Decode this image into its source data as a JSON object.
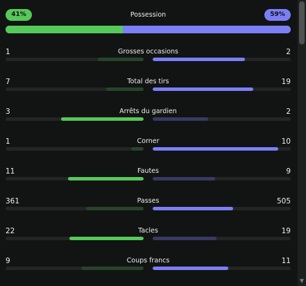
{
  "possession": {
    "title": "Possession",
    "home_label": "41%",
    "away_label": "59%",
    "home_pct": 41,
    "away_pct": 59,
    "home_color": "#55c95a",
    "away_color": "#7b7ff7"
  },
  "stats": [
    {
      "label": "Grosses occasions",
      "home": "1",
      "away": "2",
      "home_val": 1,
      "away_val": 2
    },
    {
      "label": "Total des tirs",
      "home": "7",
      "away": "19",
      "home_val": 7,
      "away_val": 19
    },
    {
      "label": "Arrêts du gardien",
      "home": "3",
      "away": "2",
      "home_val": 3,
      "away_val": 2
    },
    {
      "label": "Corner",
      "home": "1",
      "away": "10",
      "home_val": 1,
      "away_val": 10
    },
    {
      "label": "Fautes",
      "home": "11",
      "away": "9",
      "home_val": 11,
      "away_val": 9
    },
    {
      "label": "Passes",
      "home": "361",
      "away": "505",
      "home_val": 361,
      "away_val": 505
    },
    {
      "label": "Tacles",
      "home": "22",
      "away": "19",
      "home_val": 22,
      "away_val": 19
    },
    {
      "label": "Coups francs",
      "home": "9",
      "away": "11",
      "home_val": 9,
      "away_val": 11
    }
  ]
}
